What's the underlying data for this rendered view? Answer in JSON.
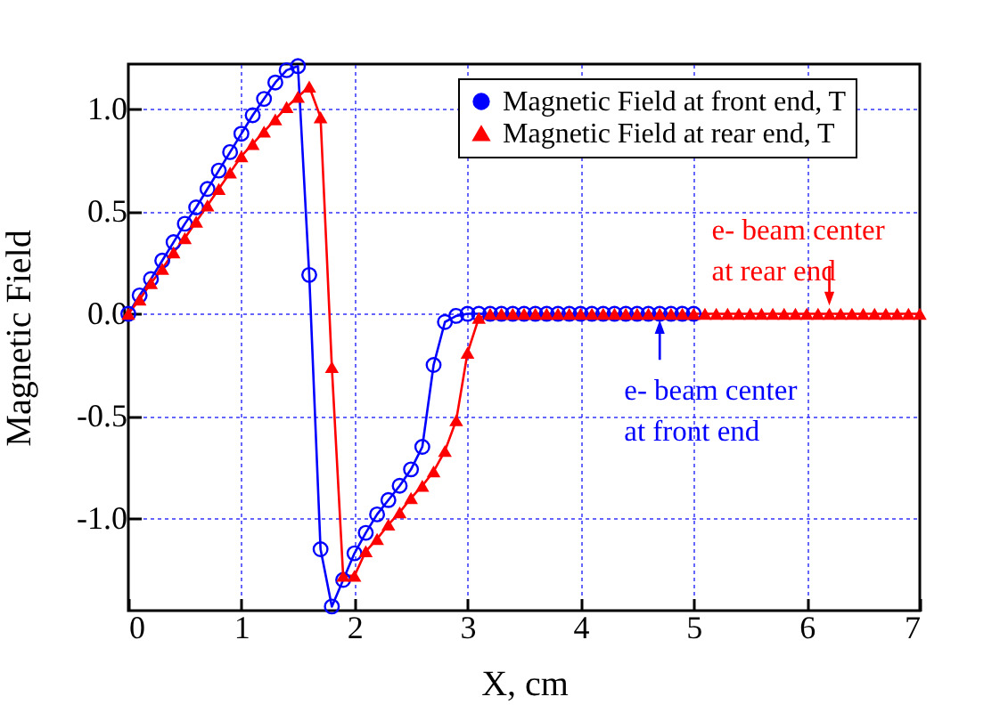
{
  "chart_data": {
    "type": "line",
    "xlabel": "X, cm",
    "ylabel": "Magnetic Field",
    "xlim": [
      0,
      7
    ],
    "xticks": [
      0,
      1,
      2,
      3,
      4,
      5,
      6,
      7
    ],
    "ylim": [
      -1.45,
      1.22
    ],
    "yticks": [
      {
        "value": -1,
        "label": "-1.0"
      },
      {
        "value": -0.5,
        "label": "-0.5"
      },
      {
        "value": 0,
        "label": "0.0"
      },
      {
        "value": 0.5,
        "label": "0.5"
      },
      {
        "value": 1,
        "label": "1.0"
      }
    ],
    "grid": true,
    "legend": "top right",
    "series": [
      {
        "name": "Magnetic Field at front end, T",
        "color": "#0000ff",
        "marker": "circle",
        "x": [
          0,
          0.1,
          0.2,
          0.3,
          0.4,
          0.5,
          0.6,
          0.7,
          0.8,
          0.9,
          1,
          1.1,
          1.2,
          1.3,
          1.4,
          1.5,
          1.6,
          1.7,
          1.8,
          1.9,
          2,
          2.1,
          2.2,
          2.3,
          2.4,
          2.5,
          2.6,
          2.7,
          2.8,
          2.9,
          3,
          3.1,
          3.2,
          3.3,
          3.4,
          3.5,
          3.6,
          3.7,
          3.8,
          3.9,
          4,
          4.1,
          4.2,
          4.3,
          4.4,
          4.5,
          4.6,
          4.7,
          4.8,
          4.9,
          5
        ],
        "values": [
          0,
          0.09,
          0.17,
          0.26,
          0.35,
          0.44,
          0.52,
          0.61,
          0.7,
          0.79,
          0.88,
          0.97,
          1.05,
          1.13,
          1.19,
          1.21,
          0.19,
          -1.15,
          -1.43,
          -1.3,
          -1.17,
          -1.07,
          -0.98,
          -0.91,
          -0.84,
          -0.76,
          -0.65,
          -0.25,
          -0.04,
          -0.01,
          0,
          0,
          0,
          0,
          0,
          0,
          0,
          0,
          0,
          0,
          0,
          0,
          0,
          0,
          0,
          0,
          0,
          0,
          0,
          0,
          0
        ]
      },
      {
        "name": "Magnetic Field at rear end, T",
        "color": "#ff0000",
        "marker": "triangle",
        "x": [
          0,
          0.1,
          0.2,
          0.3,
          0.4,
          0.5,
          0.6,
          0.7,
          0.8,
          0.9,
          1,
          1.1,
          1.2,
          1.3,
          1.4,
          1.5,
          1.6,
          1.7,
          1.8,
          1.9,
          2,
          2.1,
          2.2,
          2.3,
          2.4,
          2.5,
          2.6,
          2.7,
          2.8,
          2.9,
          3,
          3.1,
          3.2,
          3.3,
          3.4,
          3.5,
          3.6,
          3.7,
          3.8,
          3.9,
          4,
          4.1,
          4.2,
          4.3,
          4.4,
          4.5,
          4.6,
          4.7,
          4.8,
          4.9,
          5,
          5.1,
          5.2,
          5.3,
          5.4,
          5.5,
          5.6,
          5.7,
          5.8,
          5.9,
          6,
          6.1,
          6.2,
          6.3,
          6.4,
          6.5,
          6.6,
          6.7,
          6.8,
          6.9,
          7
        ],
        "values": [
          0,
          0.07,
          0.15,
          0.22,
          0.3,
          0.37,
          0.45,
          0.53,
          0.61,
          0.69,
          0.77,
          0.83,
          0.89,
          0.95,
          1.01,
          1.06,
          1.11,
          0.96,
          -0.26,
          -1.28,
          -1.28,
          -1.16,
          -1.1,
          -1.03,
          -0.97,
          -0.9,
          -0.84,
          -0.77,
          -0.67,
          -0.52,
          -0.19,
          -0.02,
          0,
          0,
          0,
          0,
          0,
          0,
          0,
          0,
          0,
          0,
          0,
          0,
          0,
          0,
          0,
          0,
          0,
          0,
          0,
          0,
          0,
          0,
          0,
          0,
          0,
          0,
          0,
          0,
          0,
          0,
          0,
          0,
          0,
          0,
          0,
          0,
          0,
          0,
          0
        ]
      }
    ],
    "annotations": [
      {
        "text": "e- beam center\nat front end",
        "x": 4.7,
        "y": -0.03
      },
      {
        "text": "e- beam center\nat rear end",
        "x": 6.2,
        "y": 0.04
      }
    ]
  }
}
